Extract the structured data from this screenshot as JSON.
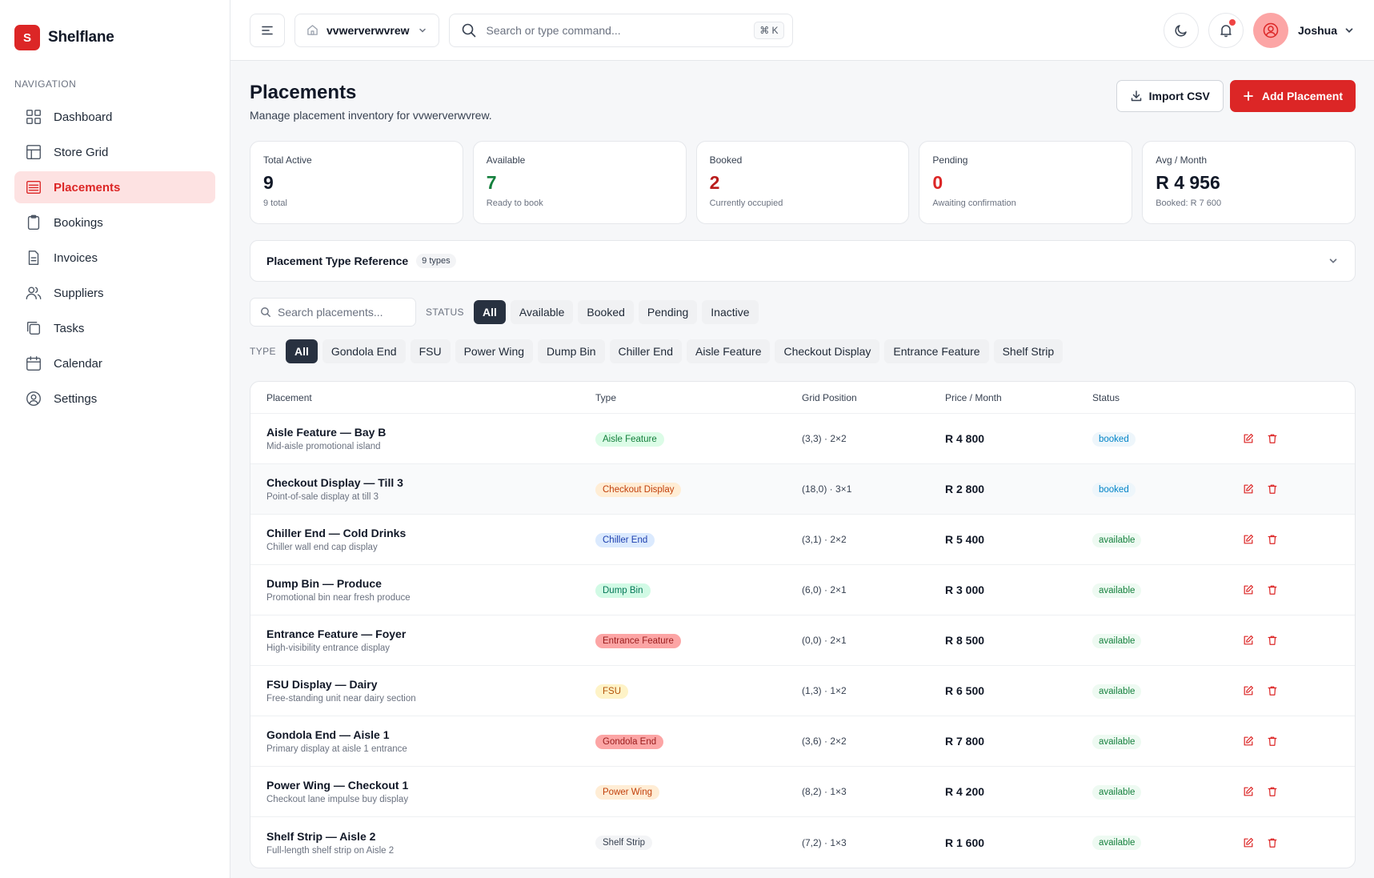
{
  "brand": {
    "logo_letter": "S",
    "name": "Shelflane"
  },
  "sidebar": {
    "heading": "NAVIGATION",
    "items": [
      {
        "label": "Dashboard",
        "icon": "dashboard-icon"
      },
      {
        "label": "Store Grid",
        "icon": "store-grid-icon"
      },
      {
        "label": "Placements",
        "icon": "placements-icon",
        "active": true
      },
      {
        "label": "Bookings",
        "icon": "bookings-icon"
      },
      {
        "label": "Invoices",
        "icon": "invoices-icon"
      },
      {
        "label": "Suppliers",
        "icon": "suppliers-icon"
      },
      {
        "label": "Tasks",
        "icon": "tasks-icon"
      },
      {
        "label": "Calendar",
        "icon": "calendar-icon"
      },
      {
        "label": "Settings",
        "icon": "settings-icon"
      }
    ]
  },
  "topbar": {
    "store_name": "vvwerverwvrew",
    "search_placeholder": "Search or type command...",
    "shortcut": "⌘ K",
    "user_name": "Joshua"
  },
  "page": {
    "title": "Placements",
    "subtitle": "Manage placement inventory for vvwerverwvrew.",
    "import_label": "Import CSV",
    "add_label": "Add Placement"
  },
  "stats": [
    {
      "label": "Total Active",
      "value": "9",
      "sub": "9 total",
      "color": "#111827"
    },
    {
      "label": "Available",
      "value": "7",
      "sub": "Ready to book",
      "color": "#15803d"
    },
    {
      "label": "Booked",
      "value": "2",
      "sub": "Currently occupied",
      "color": "#b91c1c"
    },
    {
      "label": "Pending",
      "value": "0",
      "sub": "Awaiting confirmation",
      "color": "#dc2626"
    },
    {
      "label": "Avg / Month",
      "value": "R 4 956",
      "sub": "Booked: R 7 600",
      "color": "#111827"
    }
  ],
  "reference": {
    "title": "Placement Type Reference",
    "badge": "9 types"
  },
  "filters": {
    "search_placeholder": "Search placements...",
    "status_label": "STATUS",
    "status_options": [
      "All",
      "Available",
      "Booked",
      "Pending",
      "Inactive"
    ],
    "type_label": "TYPE",
    "type_options": [
      "All",
      "Gondola End",
      "FSU",
      "Power Wing",
      "Dump Bin",
      "Chiller End",
      "Aisle Feature",
      "Checkout Display",
      "Entrance Feature",
      "Shelf Strip"
    ]
  },
  "table": {
    "headers": [
      "Placement",
      "Type",
      "Grid Position",
      "Price / Month",
      "Status"
    ],
    "rows": [
      {
        "name": "Aisle Feature — Bay B",
        "desc": "Mid-aisle promotional island",
        "type": "Aisle Feature",
        "type_bg": "#dcfce7",
        "type_fg": "#15803d",
        "grid": "(3,3) · 2×2",
        "price": "R 4 800",
        "status": "booked"
      },
      {
        "name": "Checkout Display — Till 3",
        "desc": "Point-of-sale display at till 3",
        "type": "Checkout Display",
        "type_bg": "#ffedd5",
        "type_fg": "#c2410c",
        "grid": "(18,0) · 3×1",
        "price": "R 2 800",
        "status": "booked"
      },
      {
        "name": "Chiller End — Cold Drinks",
        "desc": "Chiller wall end cap display",
        "type": "Chiller End",
        "type_bg": "#dbeafe",
        "type_fg": "#1e40af",
        "grid": "(3,1) · 2×2",
        "price": "R 5 400",
        "status": "available"
      },
      {
        "name": "Dump Bin — Produce",
        "desc": "Promotional bin near fresh produce",
        "type": "Dump Bin",
        "type_bg": "#d1fae5",
        "type_fg": "#047857",
        "grid": "(6,0) · 2×1",
        "price": "R 3 000",
        "status": "available"
      },
      {
        "name": "Entrance Feature — Foyer",
        "desc": "High-visibility entrance display",
        "type": "Entrance Feature",
        "type_bg": "#fca5a5",
        "type_fg": "#991b1b",
        "grid": "(0,0) · 2×1",
        "price": "R 8 500",
        "status": "available"
      },
      {
        "name": "FSU Display — Dairy",
        "desc": "Free-standing unit near dairy section",
        "type": "FSU",
        "type_bg": "#fef3c7",
        "type_fg": "#b45309",
        "grid": "(1,3) · 1×2",
        "price": "R 6 500",
        "status": "available"
      },
      {
        "name": "Gondola End — Aisle 1",
        "desc": "Primary display at aisle 1 entrance",
        "type": "Gondola End",
        "type_bg": "#fca5a5",
        "type_fg": "#991b1b",
        "grid": "(3,6) · 2×2",
        "price": "R 7 800",
        "status": "available"
      },
      {
        "name": "Power Wing — Checkout 1",
        "desc": "Checkout lane impulse buy display",
        "type": "Power Wing",
        "type_bg": "#ffedd5",
        "type_fg": "#c2410c",
        "grid": "(8,2) · 1×3",
        "price": "R 4 200",
        "status": "available"
      },
      {
        "name": "Shelf Strip — Aisle 2",
        "desc": "Full-length shelf strip on Aisle 2",
        "type": "Shelf Strip",
        "type_bg": "#f3f4f6",
        "type_fg": "#374151",
        "grid": "(7,2) · 1×3",
        "price": "R 1 600",
        "status": "available"
      }
    ]
  }
}
